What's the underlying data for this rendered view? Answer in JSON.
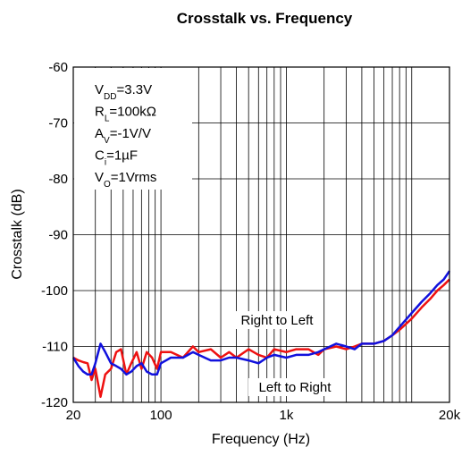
{
  "chart_data": {
    "type": "line",
    "title": "Crosstalk vs. Frequency",
    "x_label": "Frequency (Hz)",
    "y_label": "Crosstalk (dB)",
    "xscale": "log",
    "grid": true,
    "xlim": [
      20,
      20000
    ],
    "ylim": [
      -120,
      -60
    ],
    "xticks": [
      20,
      100,
      {
        "value": 1000,
        "label": "1k"
      },
      {
        "value": 20000,
        "label": "20k"
      }
    ],
    "xminor_ticks": [
      30,
      40,
      50,
      60,
      70,
      80,
      90,
      200,
      300,
      400,
      500,
      600,
      700,
      800,
      900,
      2000,
      3000,
      4000,
      5000,
      6000,
      7000,
      8000,
      9000,
      10000
    ],
    "yticks": [
      -120,
      -110,
      -100,
      -90,
      -80,
      -70,
      -60
    ],
    "annotations": [
      {
        "base": "V",
        "sub": "DD",
        "text": "=3.3V"
      },
      {
        "base": "R",
        "sub": "L",
        "text": "=100kΩ"
      },
      {
        "base": "A",
        "sub": "V",
        "text": "=-1V/V"
      },
      {
        "base": "C",
        "sub": "i",
        "text": "=1µF"
      },
      {
        "base": "V",
        "sub": "O",
        "text": "=1Vrms"
      }
    ],
    "x": [
      20,
      22,
      24,
      26,
      28,
      30,
      33,
      36,
      40,
      44,
      48,
      53,
      58,
      64,
      70,
      77,
      85,
      93,
      100,
      120,
      150,
      180,
      200,
      250,
      300,
      350,
      400,
      500,
      600,
      700,
      800,
      1000,
      1200,
      1500,
      1800,
      2000,
      2500,
      3000,
      3500,
      4000,
      5000,
      6000,
      7000,
      8000,
      10000,
      12000,
      14000,
      16000,
      18000,
      20000
    ],
    "series": [
      {
        "name": "Right to Left",
        "color": "#ee1111",
        "values": [
          -112,
          -112.5,
          -112.8,
          -113,
          -116,
          -114,
          -119,
          -115,
          -114,
          -111,
          -110.5,
          -115,
          -113,
          -111,
          -114,
          -111,
          -112,
          -114,
          -111,
          -111,
          -112,
          -110,
          -111,
          -110.5,
          -112,
          -111,
          -112,
          -110.5,
          -111.5,
          -112,
          -110.5,
          -111,
          -110.5,
          -110.5,
          -111.5,
          -110.5,
          -110,
          -110.5,
          -110,
          -109.5,
          -109.5,
          -109,
          -108,
          -107,
          -105,
          -103,
          -101.5,
          -100,
          -99,
          -98
        ]
      },
      {
        "name": "Left to Right",
        "color": "#1111dd",
        "values": [
          -112,
          -113.5,
          -114.5,
          -115,
          -115,
          -113,
          -109.5,
          -111,
          -113,
          -113.5,
          -114,
          -115,
          -114.5,
          -113.5,
          -113,
          -114.5,
          -115,
          -115,
          -113,
          -112,
          -112,
          -111,
          -111.5,
          -112.5,
          -112.5,
          -112,
          -112,
          -112.5,
          -113,
          -112,
          -111.5,
          -112,
          -111.5,
          -111.5,
          -111,
          -110.5,
          -109.5,
          -110,
          -110.5,
          -109.5,
          -109.5,
          -109,
          -108,
          -106.5,
          -104,
          -102,
          -100.5,
          -99,
          -98,
          -96.5
        ]
      }
    ]
  }
}
